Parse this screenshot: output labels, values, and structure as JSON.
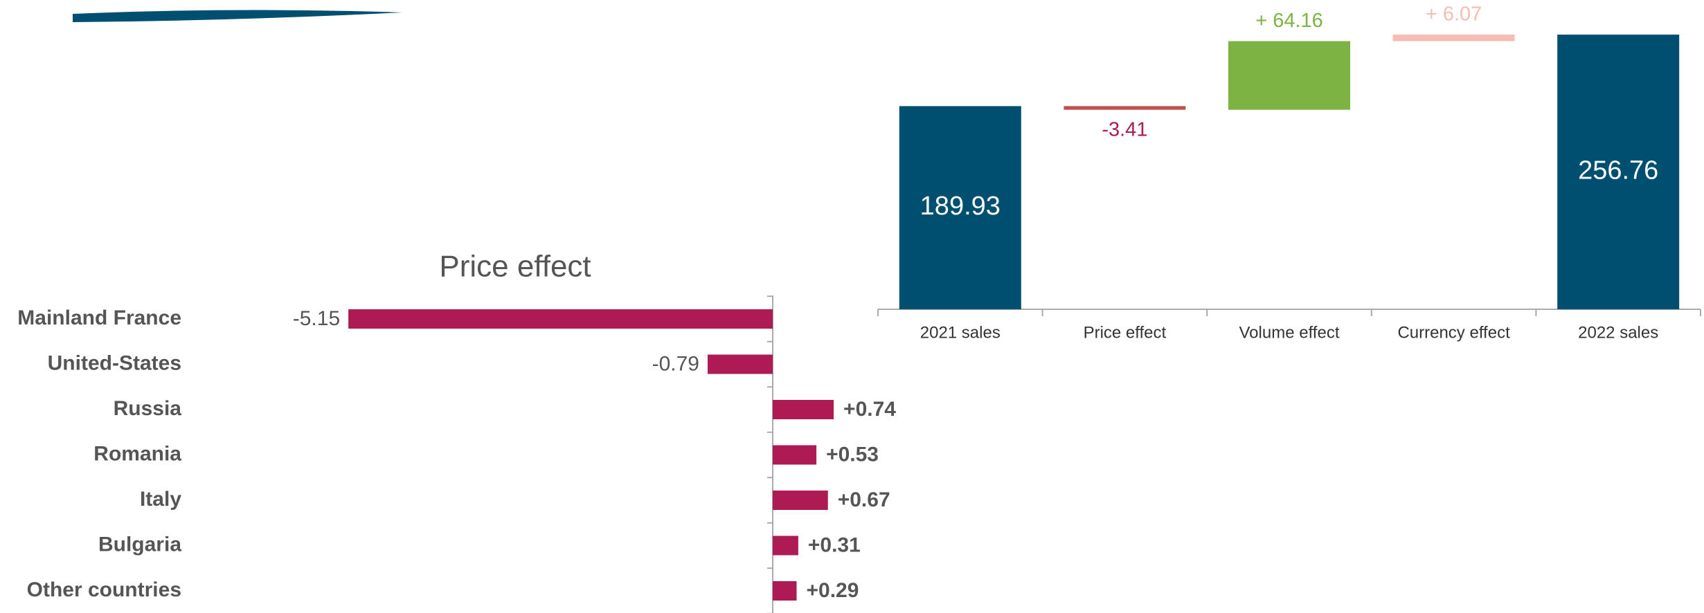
{
  "chart_data": [
    {
      "type": "waterfall",
      "categories": [
        "2021 sales",
        "Price effect",
        "Volume effect",
        "Currency effect",
        "2022 sales"
      ],
      "values": [
        189.93,
        -3.41,
        64.16,
        6.07,
        256.76
      ],
      "value_labels": [
        "189.93",
        "-3.41",
        "+ 64.16",
        "+ 6.07",
        "256.76"
      ],
      "colors": [
        "#004f71",
        "#c0504d",
        "#7cb342",
        "#f6bdb4",
        "#004f71"
      ]
    },
    {
      "type": "bar",
      "orientation": "horizontal",
      "title": "Price effect",
      "categories": [
        "Mainland France",
        "United-States",
        "Russia",
        "Romania",
        "Italy",
        "Bulgaria",
        "Other countries"
      ],
      "values": [
        -5.15,
        -0.79,
        0.74,
        0.53,
        0.67,
        0.31,
        0.29
      ],
      "value_labels": [
        "-5.15",
        "-0.79",
        "+0.74",
        "+0.53",
        "+0.67",
        "+0.31",
        "+0.29"
      ],
      "color": "#ad1a54"
    }
  ]
}
